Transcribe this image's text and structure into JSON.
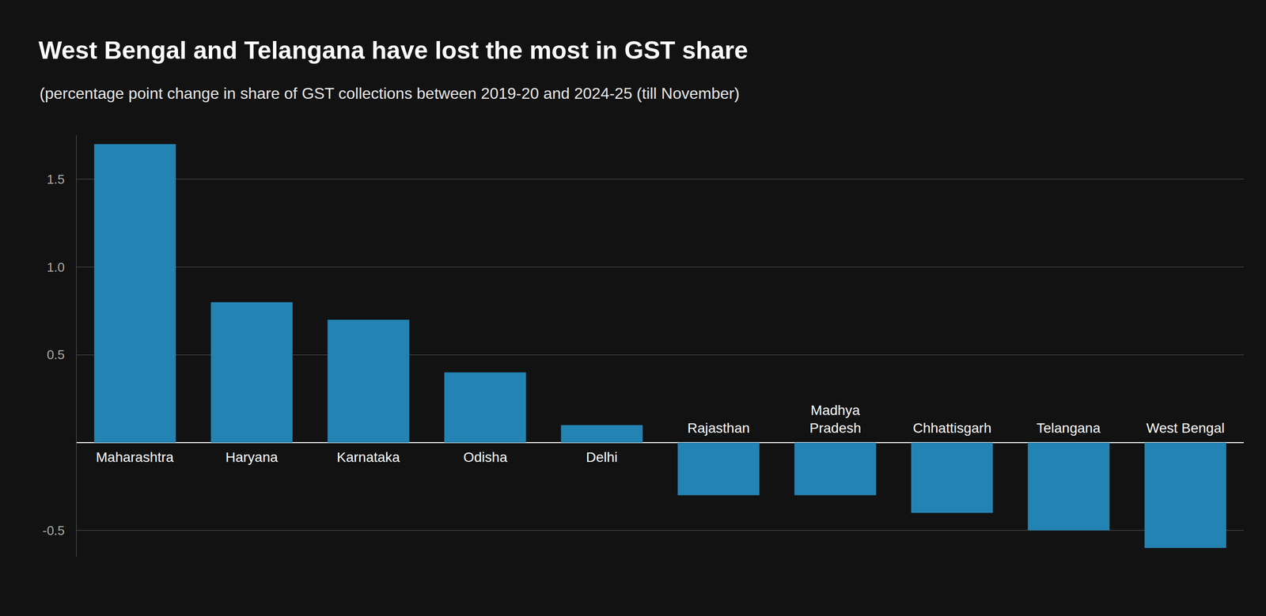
{
  "chart_data": {
    "type": "bar",
    "title": "West Bengal and Telangana have lost the most in GST share",
    "subtitle": "(percentage point change in share of GST collections between 2019-20 and 2024-25 (till November)",
    "categories": [
      "Maharashtra",
      "Haryana",
      "Karnataka",
      "Odisha",
      "Delhi",
      "Rajasthan",
      "Madhya Pradesh",
      "Chhattisgarh",
      "Telangana",
      "West Bengal"
    ],
    "values": [
      1.7,
      0.8,
      0.7,
      0.4,
      0.1,
      -0.3,
      -0.3,
      -0.4,
      -0.5,
      -0.6
    ],
    "color": "#2383b3",
    "ylim": [
      -0.65,
      1.75
    ],
    "yticks": [
      -0.5,
      0.5,
      {
        "value": 1,
        "label": "1.0"
      },
      1.5
    ],
    "grid": true
  }
}
